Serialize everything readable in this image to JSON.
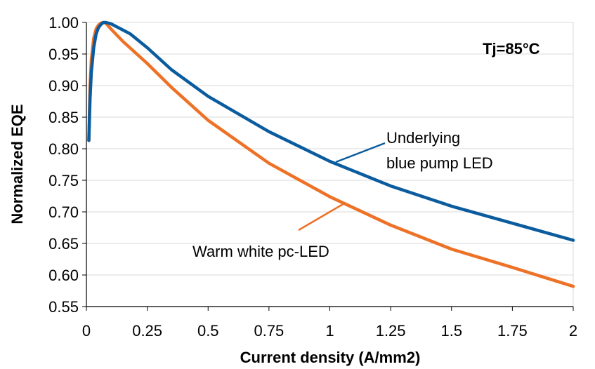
{
  "chart_data": {
    "type": "line",
    "title": "",
    "xlabel": "Current density (A/mm2)",
    "ylabel": "Normalized EQE",
    "xlim": [
      0,
      2
    ],
    "ylim": [
      0.55,
      1.0
    ],
    "xticks": [
      "0",
      "0.25",
      "0.5",
      "0.75",
      "1",
      "1.25",
      "1.5",
      "1.75",
      "2"
    ],
    "yticks": [
      "0.55",
      "0.60",
      "0.65",
      "0.70",
      "0.75",
      "0.80",
      "0.85",
      "0.90",
      "0.95",
      "1.00"
    ],
    "grid": "horizontal",
    "annotations": {
      "temperature": "Tj=85°C",
      "blue_line1": "Underlying",
      "blue_line2": "blue pump LED",
      "orange_label": "Warm white pc-LED"
    },
    "series": [
      {
        "name": "Underlying blue pump LED",
        "color": "#0b5c9e",
        "x": [
          0.01,
          0.012,
          0.015,
          0.02,
          0.03,
          0.04,
          0.05,
          0.06,
          0.07,
          0.08,
          0.1,
          0.125,
          0.18,
          0.25,
          0.35,
          0.5,
          0.75,
          1.0,
          1.25,
          1.5,
          1.75,
          2.0
        ],
        "y": [
          0.813,
          0.84,
          0.88,
          0.92,
          0.96,
          0.982,
          0.992,
          0.997,
          1.0,
          1.0,
          0.998,
          0.993,
          0.982,
          0.96,
          0.925,
          0.883,
          0.827,
          0.78,
          0.741,
          0.709,
          0.682,
          0.655
        ]
      },
      {
        "name": "Warm white pc-LED",
        "color": "#ed7126",
        "x": [
          0.01,
          0.012,
          0.015,
          0.02,
          0.03,
          0.04,
          0.05,
          0.06,
          0.07,
          0.08,
          0.1,
          0.15,
          0.25,
          0.35,
          0.5,
          0.75,
          1.0,
          1.25,
          1.5,
          1.75,
          2.0
        ],
        "y": [
          0.813,
          0.85,
          0.9,
          0.94,
          0.975,
          0.99,
          0.996,
          0.999,
          1.0,
          0.999,
          0.99,
          0.97,
          0.935,
          0.897,
          0.845,
          0.777,
          0.724,
          0.679,
          0.641,
          0.612,
          0.582
        ]
      }
    ]
  }
}
